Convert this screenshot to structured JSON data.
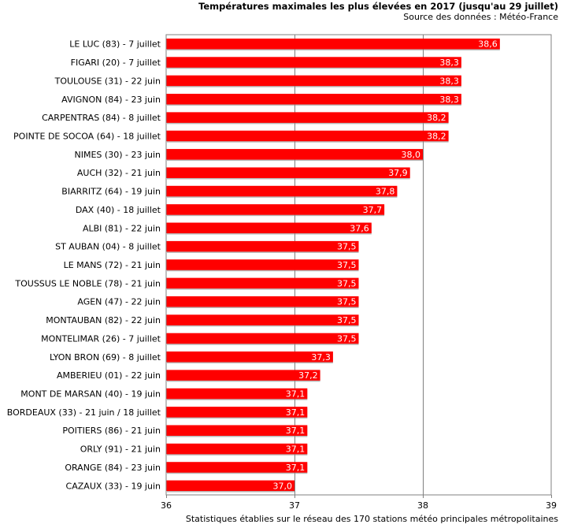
{
  "chart_data": {
    "type": "bar",
    "orientation": "horizontal",
    "title": "Températures maximales les plus élevées en 2017 (jusqu'au 29 juillet)",
    "subtitle": "Source des données : Météo-France",
    "footnote": "Statistiques établies sur le réseau des 170 stations météo principales métropolitaines",
    "categories": [
      "LE LUC (83) - 7 juillet",
      "FIGARI (20) - 7 juillet",
      "TOULOUSE (31) - 22 juin",
      "AVIGNON (84) - 23 juin",
      "CARPENTRAS (84) - 8 juillet",
      "POINTE DE SOCOA (64) - 18 juillet",
      "NIMES (30) - 23 juin",
      "AUCH (32) - 21 juin",
      "BIARRITZ (64) - 19 juin",
      "DAX (40) - 18 juillet",
      "ALBI (81) - 22 juin",
      "ST AUBAN (04) - 8 juillet",
      "LE MANS (72) - 21 juin",
      "TOUSSUS LE NOBLE (78) - 21 juin",
      "AGEN (47) - 22 juin",
      "MONTAUBAN (82) - 22 juin",
      "MONTELIMAR (26) - 7 juillet",
      "LYON BRON (69) - 8 juillet",
      "AMBERIEU (01) - 22 juin",
      "MONT DE MARSAN (40) - 19 juin",
      "BORDEAUX (33) - 21 juin / 18 juillet",
      "POITIERS (86) - 21 juin",
      "ORLY (91) - 21 juin",
      "ORANGE (84) - 23 juin",
      "CAZAUX (33) - 19 juin"
    ],
    "values": [
      38.6,
      38.3,
      38.3,
      38.3,
      38.2,
      38.2,
      38.0,
      37.9,
      37.8,
      37.7,
      37.6,
      37.5,
      37.5,
      37.5,
      37.5,
      37.5,
      37.5,
      37.3,
      37.2,
      37.1,
      37.1,
      37.1,
      37.1,
      37.1,
      37.0
    ],
    "value_labels": [
      "38,6",
      "38,3",
      "38,3",
      "38,3",
      "38,2",
      "38,2",
      "38,0",
      "37,9",
      "37,8",
      "37,7",
      "37,6",
      "37,5",
      "37,5",
      "37,5",
      "37,5",
      "37,5",
      "37,5",
      "37,3",
      "37,2",
      "37,1",
      "37,1",
      "37,1",
      "37,1",
      "37,1",
      "37,0"
    ],
    "xlim": [
      36,
      39
    ],
    "xticks": [
      36,
      37,
      38,
      39
    ],
    "xtick_labels": [
      "36",
      "37",
      "38",
      "39"
    ],
    "grid": "vertical",
    "legend": "none",
    "bar_color": "#ff0000",
    "value_label_color": "#ffffff"
  }
}
